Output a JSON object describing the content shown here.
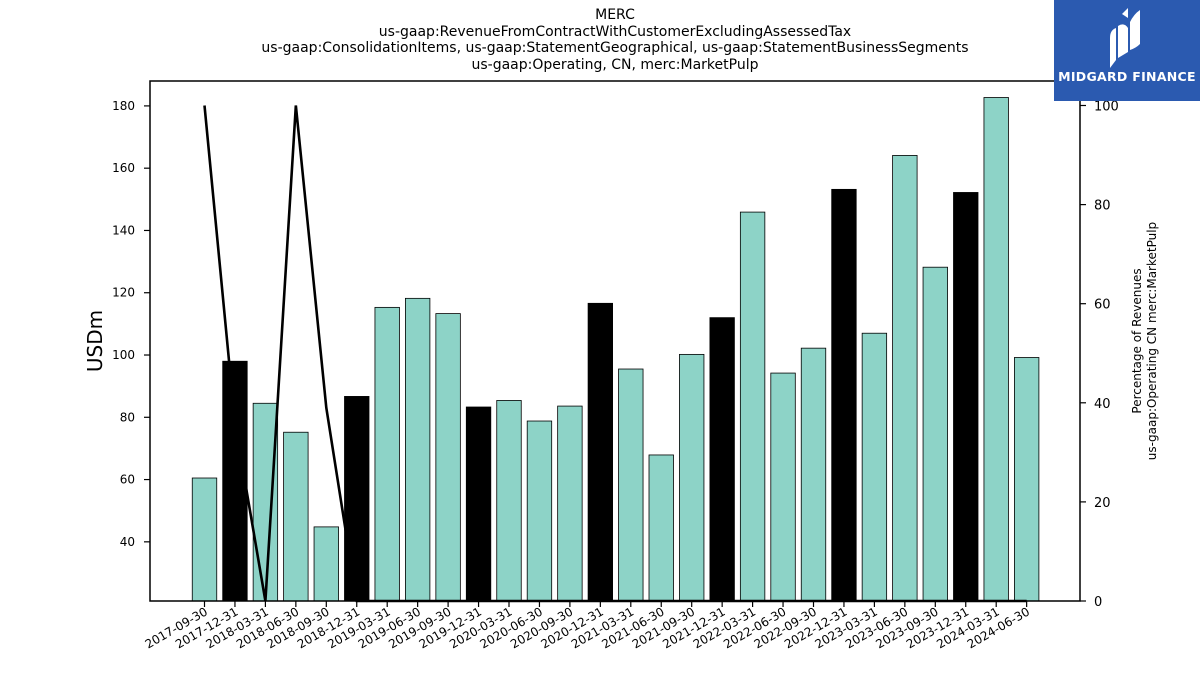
{
  "chart_data": {
    "type": "bar",
    "title_lines": [
      "MERC",
      "us-gaap:RevenueFromContractWithCustomerExcludingAssessedTax",
      "us-gaap:ConsolidationItems, us-gaap:StatementGeographical, us-gaap:StatementBusinessSegments",
      "us-gaap:Operating, CN, merc:MarketPulp"
    ],
    "ylabel": "USDm",
    "ylabel_right": [
      "Percentage of Revenues",
      "us-gaap:Operating CN merc:MarketPulp"
    ],
    "ylim": [
      21,
      188
    ],
    "ylim_right": [
      0,
      100
    ],
    "y_ticks": [
      40,
      60,
      80,
      100,
      120,
      140,
      160,
      180
    ],
    "y_ticks_right": [
      0,
      20,
      40,
      60,
      80,
      100
    ],
    "categories": [
      "2017-09-30",
      "2017-12-31",
      "2018-03-31",
      "2018-06-30",
      "2018-09-30",
      "2018-12-31",
      "2019-03-31",
      "2019-06-30",
      "2019-09-30",
      "2019-12-31",
      "2020-03-31",
      "2020-06-30",
      "2020-09-30",
      "2020-12-31",
      "2021-03-31",
      "2021-06-30",
      "2021-09-30",
      "2021-12-31",
      "2022-03-31",
      "2022-06-30",
      "2022-09-30",
      "2022-12-31",
      "2023-03-31",
      "2023-06-30",
      "2023-09-30",
      "2023-12-31",
      "2024-03-31",
      "2024-06-30"
    ],
    "values": [
      60.5,
      98.0,
      84.5,
      75.2,
      44.8,
      86.7,
      115.3,
      118.2,
      113.3,
      83.3,
      85.4,
      78.8,
      83.6,
      116.6,
      95.5,
      67.9,
      100.2,
      112.0,
      145.9,
      94.2,
      102.2,
      153.2,
      107.0,
      164.1,
      128.2,
      152.2,
      182.7,
      99.2
    ],
    "annual_flags": [
      false,
      true,
      false,
      false,
      false,
      true,
      false,
      false,
      false,
      true,
      false,
      false,
      false,
      true,
      false,
      false,
      false,
      true,
      false,
      false,
      false,
      true,
      false,
      false,
      false,
      true,
      false,
      false
    ],
    "colors": {
      "quarter": "#8dd3c7",
      "annual": "#000000",
      "line": "#000000"
    },
    "percent_line": [
      100,
      36,
      0,
      100,
      39,
      0,
      0,
      0,
      0,
      0,
      0,
      0,
      0,
      0,
      0,
      0,
      0,
      0,
      0,
      0,
      0,
      0,
      0,
      0,
      0,
      0,
      0,
      0
    ]
  },
  "logo": {
    "text": "MIDGARD FINANCE"
  }
}
